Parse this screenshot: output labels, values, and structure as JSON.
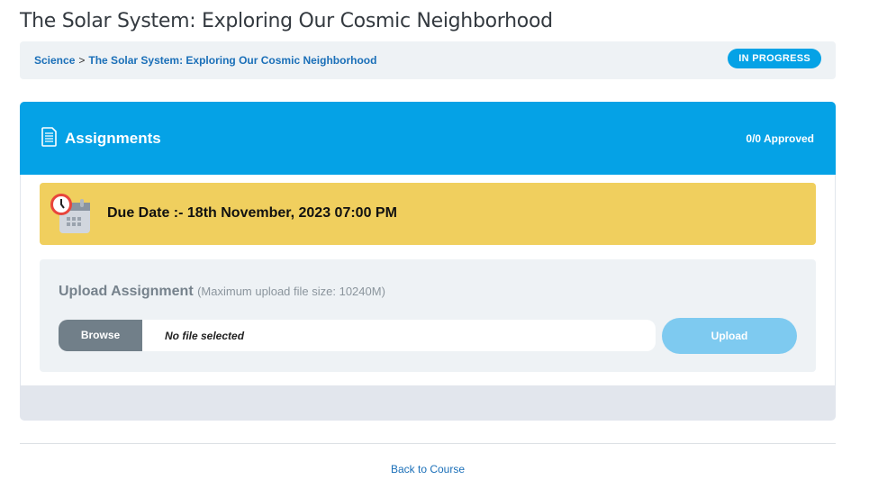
{
  "page": {
    "title": "The Solar System: Exploring Our Cosmic Neighborhood"
  },
  "breadcrumb": {
    "items": [
      "Science",
      "The Solar System: Exploring Our Cosmic Neighborhood"
    ],
    "separator": ">"
  },
  "status": {
    "label": "IN PROGRESS",
    "color": "#05a2e6"
  },
  "assignments": {
    "title": "Assignments",
    "icon": "document-icon",
    "approved": "0/0 Approved",
    "color": "#05a2e6"
  },
  "due": {
    "text": "Due Date :- 18th November, 2023 07:00 PM",
    "icon": "calendar-clock-icon",
    "color": "#f0cf5e"
  },
  "upload": {
    "title": "Upload Assignment",
    "hint": "(Maximum upload file size: 10240M)",
    "browse_label": "Browse",
    "file_status": "No file selected",
    "upload_label": "Upload"
  },
  "footer": {
    "back_label": "Back to Course"
  }
}
